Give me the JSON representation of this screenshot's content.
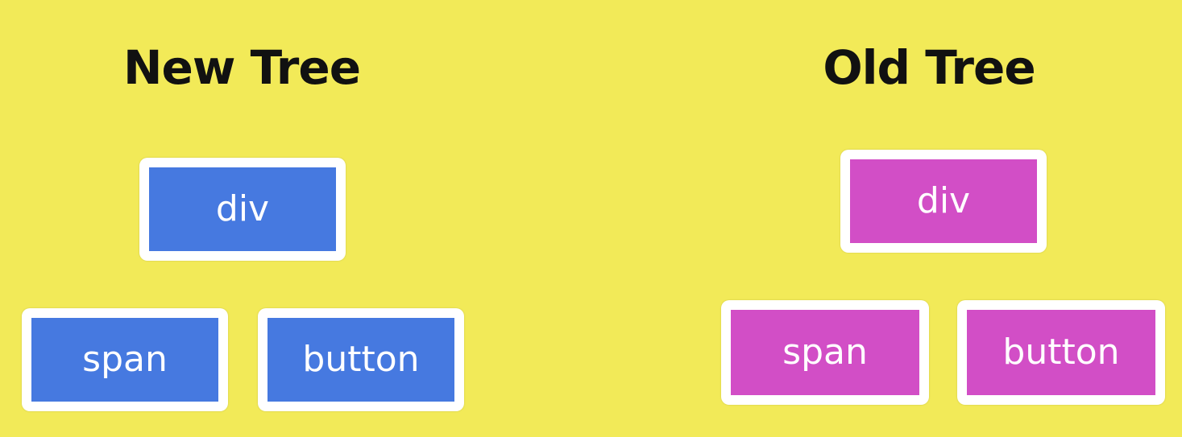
{
  "colors": {
    "background": "#f2ea58",
    "new_tree_node": "#4679e0",
    "old_tree_node": "#d24ec6",
    "node_border": "#ffffff",
    "title_text": "#111111"
  },
  "new_tree": {
    "title": "New Tree",
    "root": {
      "label": "div"
    },
    "children": [
      {
        "label": "span"
      },
      {
        "label": "button"
      }
    ]
  },
  "old_tree": {
    "title": "Old Tree",
    "root": {
      "label": "div"
    },
    "children": [
      {
        "label": "span"
      },
      {
        "label": "button"
      }
    ]
  }
}
